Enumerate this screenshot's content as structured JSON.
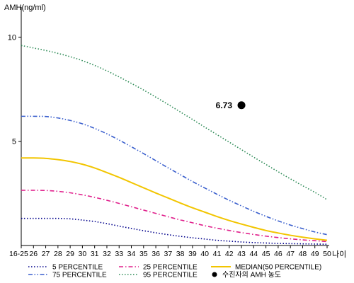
{
  "chart_data": {
    "type": "line",
    "ylabel": "AMH(ng/ml)",
    "xlabel": "나이",
    "ylim": [
      0,
      11
    ],
    "yticks": [
      5,
      10
    ],
    "categories": [
      "16-25",
      "26",
      "27",
      "28",
      "29",
      "30",
      "31",
      "32",
      "33",
      "34",
      "35",
      "36",
      "37",
      "38",
      "39",
      "40",
      "41",
      "42",
      "43",
      "44",
      "45",
      "46",
      "47",
      "48",
      "49",
      "50"
    ],
    "series": [
      {
        "name": "5 PERCENTILE",
        "color": "#00008b",
        "dash": "dotted",
        "values": [
          1.3,
          1.3,
          1.3,
          1.3,
          1.28,
          1.22,
          1.15,
          1.05,
          0.93,
          0.82,
          0.71,
          0.61,
          0.52,
          0.44,
          0.37,
          0.31,
          0.25,
          0.21,
          0.17,
          0.14,
          0.12,
          0.1,
          0.09,
          0.08,
          0.07,
          0.06
        ]
      },
      {
        "name": "25 PERCENTILE",
        "color": "#e0208c",
        "dash": "dashdot",
        "values": [
          2.65,
          2.65,
          2.64,
          2.6,
          2.53,
          2.43,
          2.31,
          2.17,
          2.02,
          1.86,
          1.7,
          1.54,
          1.38,
          1.23,
          1.09,
          0.95,
          0.83,
          0.72,
          0.62,
          0.53,
          0.45,
          0.38,
          0.32,
          0.27,
          0.23,
          0.19
        ]
      },
      {
        "name": "MEDIAN(50 PERCENTILE)",
        "color": "#f2c500",
        "dash": "solid",
        "values": [
          4.2,
          4.2,
          4.18,
          4.12,
          4.03,
          3.9,
          3.72,
          3.5,
          3.27,
          3.02,
          2.77,
          2.52,
          2.28,
          2.04,
          1.81,
          1.6,
          1.39,
          1.2,
          1.03,
          0.87,
          0.72,
          0.6,
          0.49,
          0.4,
          0.32,
          0.25
        ]
      },
      {
        "name": "75 PERCENTILE",
        "color": "#3a5fcd",
        "dash": "dashdotdot",
        "values": [
          6.2,
          6.2,
          6.19,
          6.12,
          6.0,
          5.84,
          5.62,
          5.36,
          5.06,
          4.74,
          4.41,
          4.07,
          3.73,
          3.4,
          3.07,
          2.76,
          2.46,
          2.17,
          1.9,
          1.64,
          1.4,
          1.18,
          0.98,
          0.81,
          0.65,
          0.52
        ]
      },
      {
        "name": "95 PERCENTILE",
        "color": "#2e8b57",
        "dash": "dotted",
        "values": [
          9.6,
          9.48,
          9.36,
          9.22,
          9.06,
          8.87,
          8.64,
          8.38,
          8.09,
          7.78,
          7.46,
          7.12,
          6.77,
          6.41,
          6.05,
          5.68,
          5.32,
          4.96,
          4.6,
          4.24,
          3.89,
          3.54,
          3.2,
          2.87,
          2.55,
          2.2
        ]
      }
    ],
    "points": [
      {
        "name": "수진자의 AMH 농도",
        "x": "43",
        "y": 6.73,
        "label": "6.73",
        "color": "#000000"
      }
    ],
    "legend": {
      "placement": "bottom",
      "entries": [
        {
          "label": "5 PERCENTILE",
          "color": "#00008b",
          "dash": "dotted"
        },
        {
          "label": "25 PERCENTILE",
          "color": "#e0208c",
          "dash": "dashdot"
        },
        {
          "label": "MEDIAN(50 PERCENTILE)",
          "color": "#f2c500",
          "dash": "solid"
        },
        {
          "label": "75 PERCENTILE",
          "color": "#3a5fcd",
          "dash": "dashdotdot"
        },
        {
          "label": "95 PERCENTILE",
          "color": "#2e8b57",
          "dash": "dotted"
        },
        {
          "label": "수진자의 AMH 농도",
          "color": "#000000",
          "marker": "dot"
        }
      ]
    },
    "grid": false
  }
}
